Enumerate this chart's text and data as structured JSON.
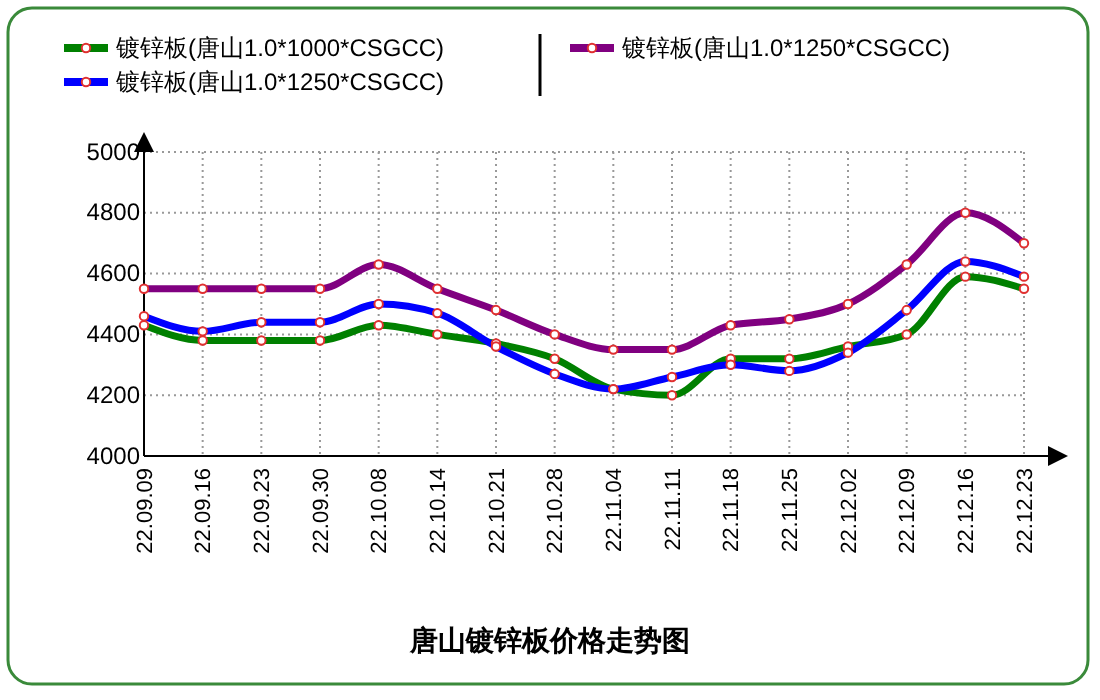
{
  "chart_data": {
    "type": "line",
    "title": "唐山镀锌板价格走势图",
    "categories": [
      "22.09.09",
      "22.09.16",
      "22.09.23",
      "22.09.30",
      "22.10.08",
      "22.10.14",
      "22.10.21",
      "22.10.28",
      "22.11.04",
      "22.11.11",
      "22.11.18",
      "22.11.25",
      "22.12.02",
      "22.12.09",
      "22.12.16",
      "22.12.23"
    ],
    "series": [
      {
        "name": "镀锌板(唐山1.0*1000*CSGCC)",
        "color": "#008000",
        "values": [
          4430,
          4380,
          4380,
          4380,
          4430,
          4400,
          4370,
          4320,
          4220,
          4200,
          4320,
          4320,
          4360,
          4400,
          4590,
          4550
        ]
      },
      {
        "name": "镀锌板(唐山1.0*1250*CSGCC)",
        "color": "#0000ff",
        "values": [
          4460,
          4410,
          4440,
          4440,
          4500,
          4470,
          4360,
          4270,
          4220,
          4260,
          4300,
          4280,
          4340,
          4480,
          4640,
          4590
        ]
      },
      {
        "name": "镀锌板(唐山1.0*1250*CSGCC)",
        "color": "#800080",
        "values": [
          4550,
          4550,
          4550,
          4550,
          4630,
          4550,
          4480,
          4400,
          4350,
          4350,
          4430,
          4450,
          4500,
          4630,
          4800,
          4700
        ]
      }
    ],
    "ylim": [
      4000,
      5000
    ],
    "yticks": [
      4000,
      4200,
      4400,
      4600,
      4800,
      5000
    ],
    "grid": true,
    "legend": "top",
    "marker": "circle",
    "line_style": "solid"
  }
}
